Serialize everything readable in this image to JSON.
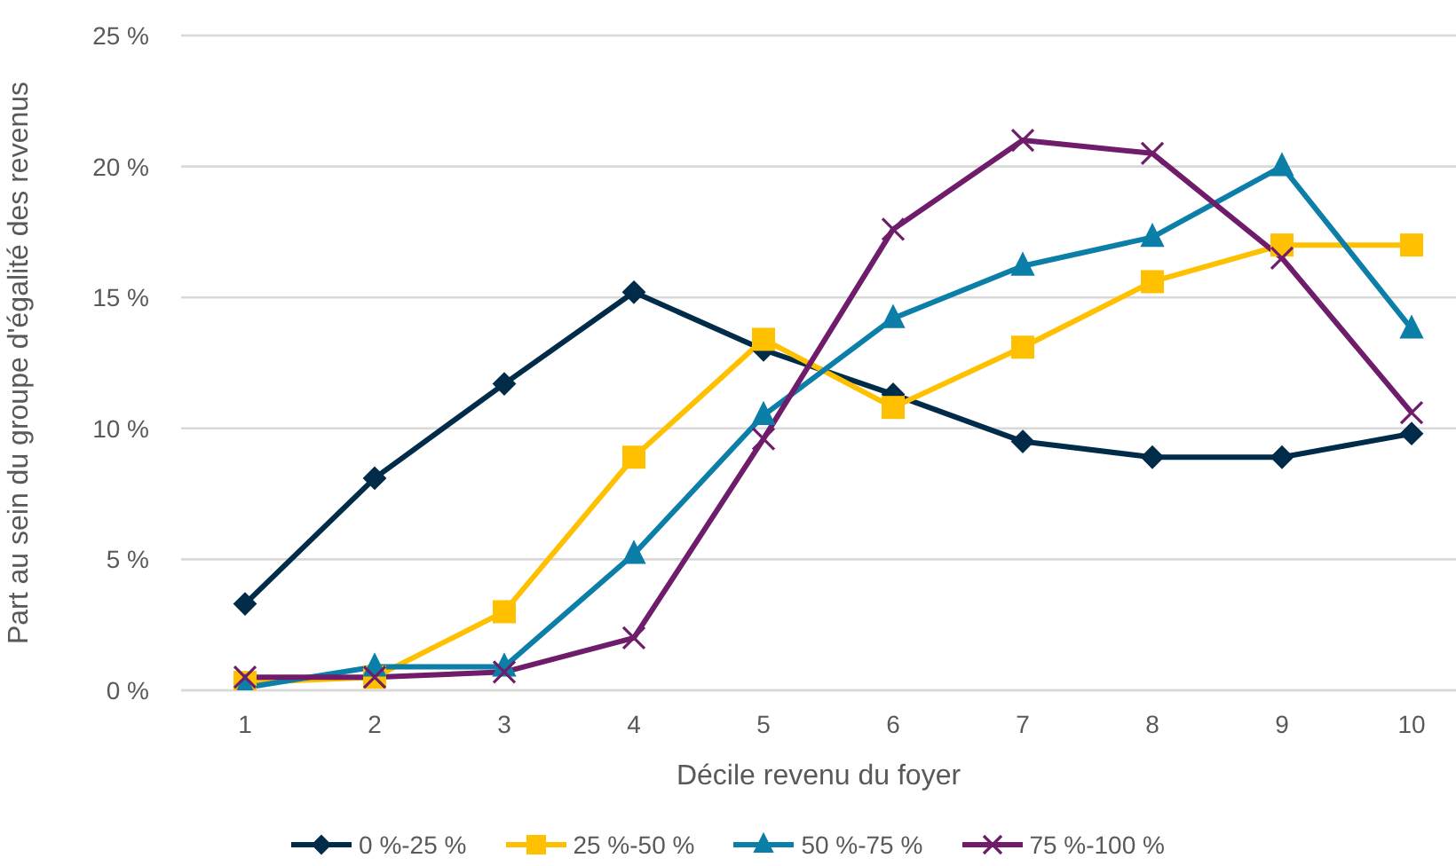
{
  "chart_data": {
    "type": "line",
    "xlabel": "Décile revenu du foyer",
    "ylabel": "Part au sein du groupe d'égalité des revenus",
    "categories": [
      "1",
      "2",
      "3",
      "4",
      "5",
      "6",
      "7",
      "8",
      "9",
      "10"
    ],
    "ylim": [
      0,
      25
    ],
    "yticks": [
      {
        "value": 0,
        "label": "0 %"
      },
      {
        "value": 5,
        "label": "5 %"
      },
      {
        "value": 10,
        "label": "10 %"
      },
      {
        "value": 15,
        "label": "15 %"
      },
      {
        "value": 20,
        "label": "20 %"
      },
      {
        "value": 25,
        "label": "25 %"
      }
    ],
    "grid": "y",
    "legend": "bottom",
    "line_style": "solid",
    "series": [
      {
        "name": "0 %-25 %",
        "color": "#002b49",
        "marker": "diamond",
        "values": [
          3.3,
          8.1,
          11.7,
          15.2,
          13.0,
          11.3,
          9.5,
          8.9,
          8.9,
          9.8
        ]
      },
      {
        "name": "25 %-50 %",
        "color": "#ffc000",
        "marker": "square",
        "values": [
          0.3,
          0.5,
          3.0,
          8.9,
          13.4,
          10.8,
          13.1,
          15.6,
          17.0,
          17.0
        ]
      },
      {
        "name": "50 %-75 %",
        "color": "#0b7fa8",
        "marker": "triangle",
        "values": [
          0.1,
          0.9,
          0.9,
          5.2,
          10.5,
          14.2,
          16.2,
          17.3,
          20.0,
          13.8
        ]
      },
      {
        "name": "75 %-100 %",
        "color": "#6f1d6b",
        "marker": "cross",
        "values": [
          0.5,
          0.5,
          0.7,
          2.0,
          9.6,
          17.6,
          21.0,
          20.5,
          16.5,
          10.6
        ]
      }
    ]
  }
}
